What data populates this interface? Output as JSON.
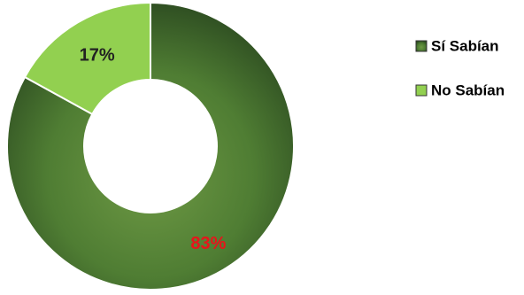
{
  "chart_data": {
    "type": "donut",
    "categories": [
      "Sí Sabían",
      "No Sabían"
    ],
    "values": [
      83,
      17
    ],
    "value_labels": [
      "83%",
      "17%"
    ],
    "colors": [
      "#4f7d33",
      "#92d050"
    ]
  }
}
